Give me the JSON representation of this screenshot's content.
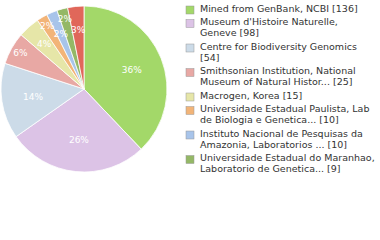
{
  "chart_data": {
    "type": "pie",
    "categories": [
      "Mined from GenBank, NCBI [136]",
      "Museum d'Histoire Naturelle, Geneve [98]",
      "Centre for Biodiversity Genomics [54]",
      "Smithsonian Institution, National Museum of Natural Histor... [25]",
      "Macrogen, Korea [15]",
      "Universidade Estadual Paulista, Lab de Biologia e Genetica... [10]",
      "Instituto Nacional de Pesquisas da Amazonia, Laboratorios ... [10]",
      "Universidade Estadual do Maranhao, Laboratorio de Genetica... [9]",
      null
    ],
    "values": [
      36,
      26,
      14,
      6,
      4,
      2,
      2,
      2,
      3
    ],
    "value_labels": [
      "36%",
      "26%",
      "14%",
      "6%",
      "4%",
      "2%",
      "2%",
      "2%",
      "3%"
    ],
    "colors": [
      "#a3d869",
      "#dcc3e6",
      "#ccdbe8",
      "#e8a8a4",
      "#e6e6a8",
      "#f2b478",
      "#a8c4ea",
      "#94b866",
      "#e0675a"
    ],
    "data_labels": true,
    "legend": "right"
  }
}
